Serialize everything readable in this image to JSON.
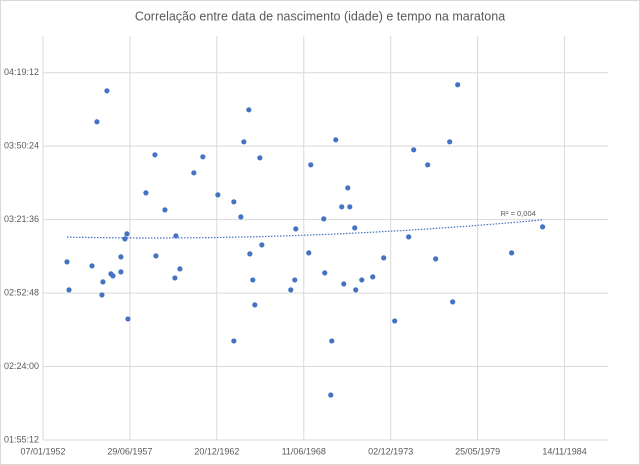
{
  "chart_data": {
    "type": "scatter",
    "title": "Correlação entre data de nascimento (idade) e tempo na maratona",
    "trendline_label": "R² = 0,004",
    "color": "#4472c4",
    "grid": true,
    "xlim": [
      19000,
      32000
    ],
    "xticks": [
      {
        "value": 19000,
        "label": "07/01/1952"
      },
      {
        "value": 21000,
        "label": "29/06/1957"
      },
      {
        "value": 23000,
        "label": "20/12/1962"
      },
      {
        "value": 25000,
        "label": "11/06/1968"
      },
      {
        "value": 27000,
        "label": "02/12/1973"
      },
      {
        "value": 29000,
        "label": "25/05/1979"
      },
      {
        "value": 31000,
        "label": "14/11/1984"
      }
    ],
    "ylim": [
      6912,
      16416
    ],
    "yticks": [
      {
        "value": 6912,
        "label": "01:55:12"
      },
      {
        "value": 8640,
        "label": "02:24:00"
      },
      {
        "value": 10368,
        "label": "02:52:48"
      },
      {
        "value": 12096,
        "label": "03:21:36"
      },
      {
        "value": 13824,
        "label": "03:50:24"
      },
      {
        "value": 15552,
        "label": "04:19:12"
      }
    ],
    "x": [
      19552,
      19598,
      20127,
      20241,
      20356,
      20379,
      20471,
      20563,
      20609,
      20793,
      20793,
      20885,
      20931,
      20954,
      21368,
      21575,
      21598,
      21805,
      22035,
      22058,
      22150,
      22471,
      22678,
      23023,
      23391,
      23391,
      23552,
      23621,
      23736,
      23759,
      23828,
      23874,
      23989,
      24035,
      24701,
      24793,
      24816,
      25115,
      25161,
      25460,
      25483,
      25621,
      25644,
      25736,
      25874,
      25920,
      26012,
      26058,
      26173,
      26196,
      26334,
      26587,
      26839,
      27092,
      27414,
      27529,
      27851,
      28035,
      28357,
      28426,
      28541,
      29782,
      30495
    ],
    "values": [
      11102,
      10443,
      11008,
      14398,
      10325,
      10631,
      15127,
      10820,
      10773,
      10867,
      11220,
      11644,
      11761,
      9760,
      12726,
      13621,
      11243,
      12326,
      10725,
      11714,
      10937,
      13197,
      13574,
      12679,
      12515,
      9242,
      12161,
      13927,
      14680,
      11290,
      10678,
      10090,
      13550,
      11502,
      10443,
      10678,
      11879,
      11314,
      13386,
      12114,
      10843,
      7971,
      9242,
      13974,
      12397,
      10584,
      12844,
      12397,
      11902,
      10443,
      10678,
      10749,
      11196,
      9713,
      11691,
      13739,
      13386,
      11173,
      13927,
      10161,
      15269,
      11314,
      11926
    ]
  }
}
